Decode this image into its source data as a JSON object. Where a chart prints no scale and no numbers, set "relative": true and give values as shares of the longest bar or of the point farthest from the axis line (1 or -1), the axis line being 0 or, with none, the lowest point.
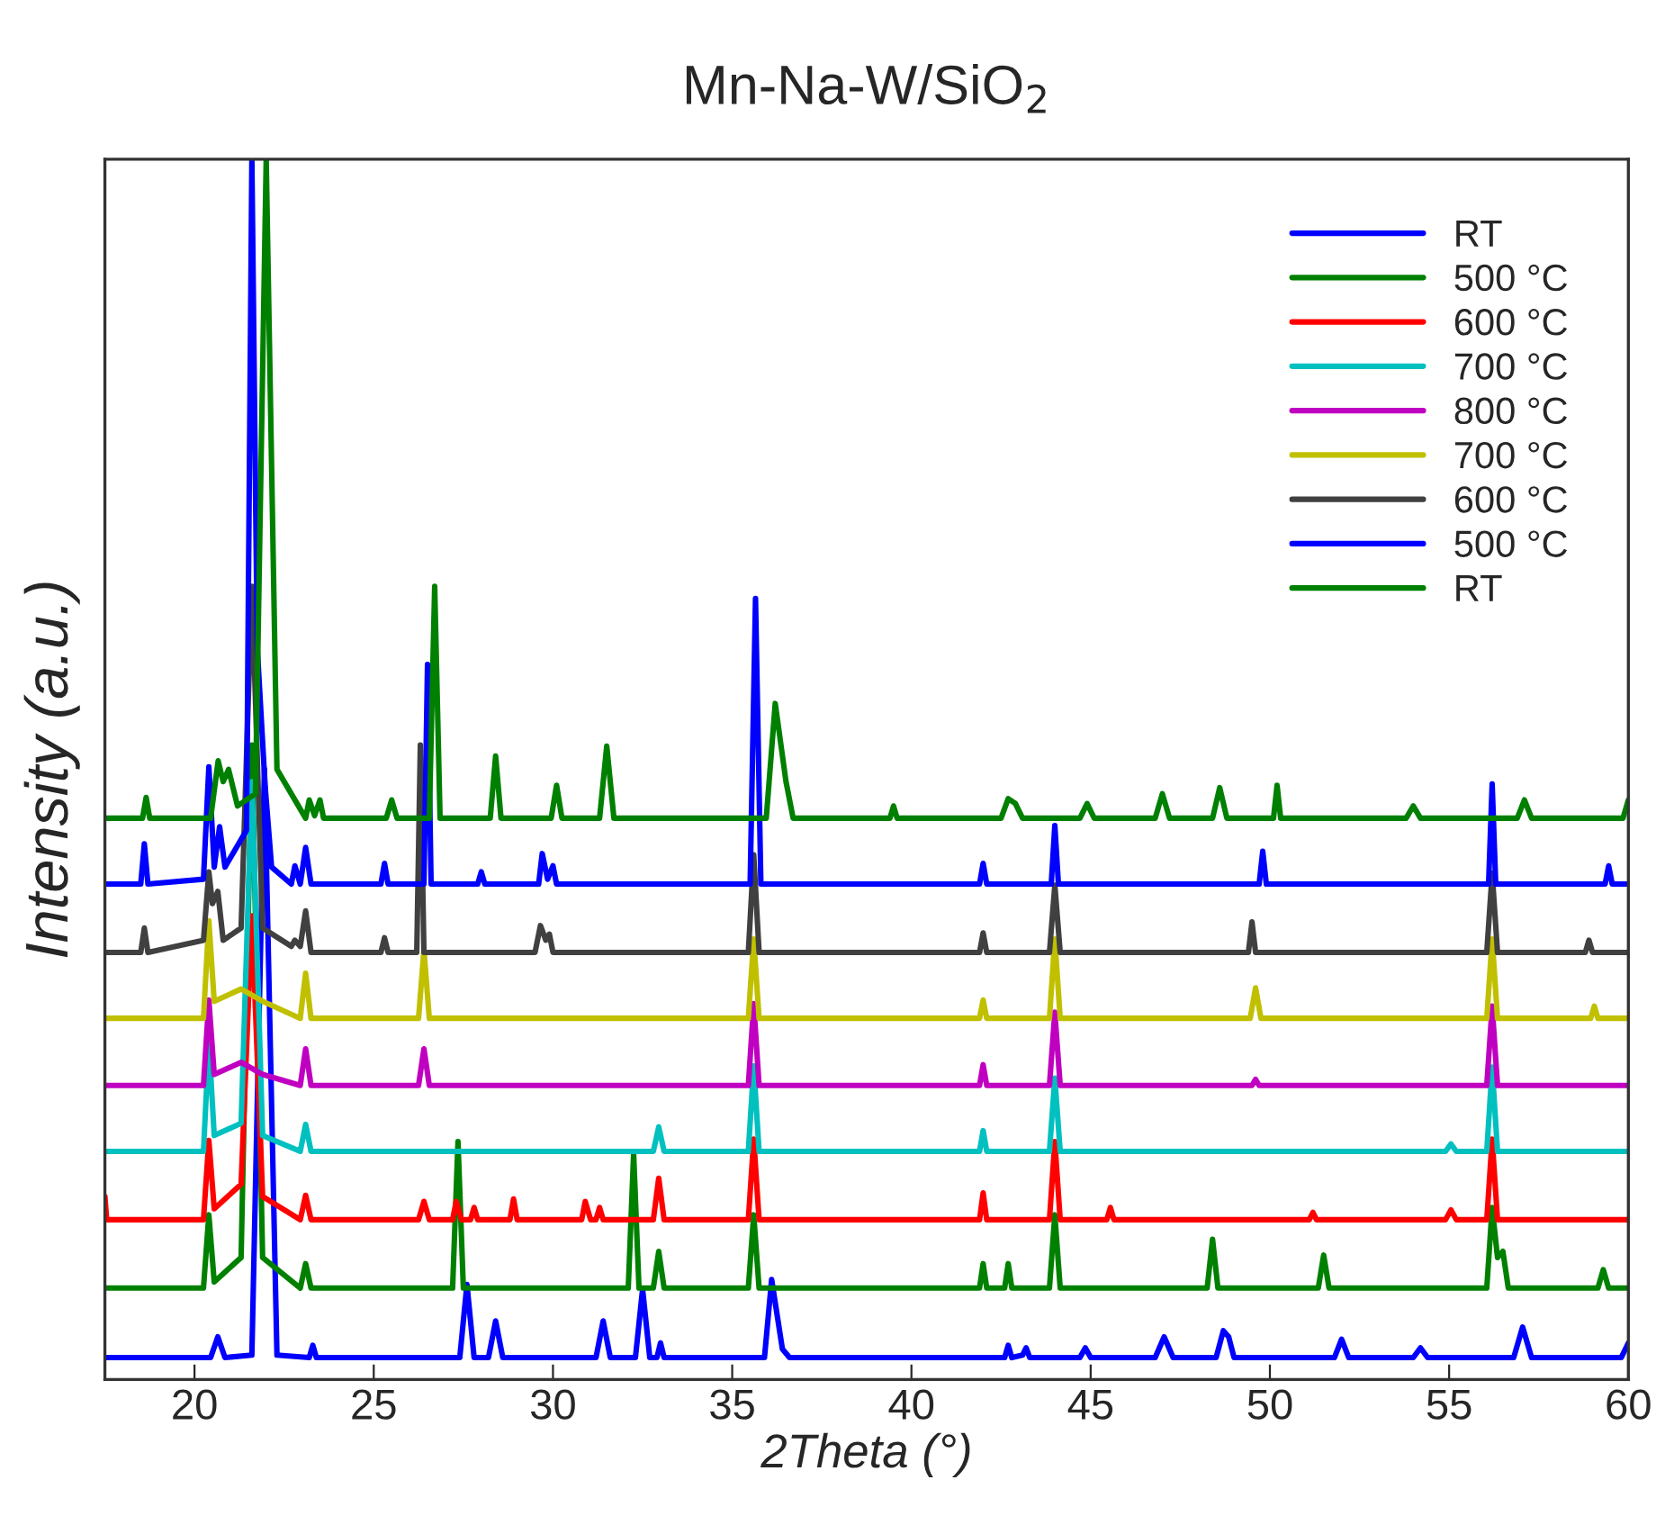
{
  "chart_data": {
    "type": "line",
    "title": "Mn-Na-W/SiO$_{2}$",
    "xlabel": "2Theta (°)",
    "ylabel": "Intensity (a.u.)",
    "xlim": [
      17.5,
      60
    ],
    "xticks": [
      20,
      25,
      30,
      35,
      40,
      45,
      50,
      55,
      60
    ],
    "relative": true,
    "tick_labels": "x",
    "legend": "top right",
    "series": [
      {
        "name": "RT",
        "color": "#0000ff",
        "x": [
          17.5,
          20.45,
          20.65,
          20.85,
          21.6,
          21.95,
          22.3,
          23.2,
          23.3,
          23.4,
          27.4,
          27.6,
          27.8,
          28.2,
          28.4,
          28.6,
          31.2,
          31.4,
          31.6,
          32.3,
          32.5,
          32.7,
          32.9,
          33.0,
          33.1,
          35.9,
          36.1,
          36.4,
          36.6,
          42.6,
          42.7,
          42.8,
          43.1,
          43.2,
          43.3,
          44.7,
          44.85,
          45.0,
          46.8,
          47.05,
          47.3,
          48.5,
          48.7,
          48.85,
          49.0,
          51.8,
          52.0,
          52.2,
          54.0,
          54.2,
          54.4,
          56.8,
          57.05,
          57.3,
          59.8,
          60
        ],
        "values": [
          0.018,
          0.018,
          0.035,
          0.018,
          0.02,
          0.5,
          0.02,
          0.018,
          0.028,
          0.018,
          0.018,
          0.078,
          0.018,
          0.018,
          0.048,
          0.018,
          0.018,
          0.048,
          0.018,
          0.018,
          0.074,
          0.018,
          0.018,
          0.03,
          0.018,
          0.018,
          0.082,
          0.025,
          0.018,
          0.018,
          0.028,
          0.018,
          0.02,
          0.026,
          0.018,
          0.018,
          0.026,
          0.018,
          0.018,
          0.035,
          0.018,
          0.018,
          0.04,
          0.035,
          0.018,
          0.018,
          0.033,
          0.018,
          0.018,
          0.026,
          0.018,
          0.018,
          0.043,
          0.018,
          0.018,
          0.03
        ]
      },
      {
        "name": "500 °C",
        "color": "#008000",
        "x": [
          17.5,
          20.25,
          20.4,
          20.55,
          21.3,
          21.6,
          21.9,
          22.95,
          23.1,
          23.25,
          27.2,
          27.35,
          27.5,
          32.1,
          32.25,
          32.4,
          32.8,
          32.95,
          33.1,
          35.45,
          35.6,
          35.75,
          41.9,
          42.0,
          42.1,
          42.6,
          42.7,
          42.8,
          43.85,
          44.0,
          44.15,
          48.25,
          48.4,
          48.55,
          51.35,
          51.5,
          51.65,
          56.05,
          56.2,
          56.35,
          56.5,
          56.65,
          59.15,
          59.3,
          59.45,
          60
        ],
        "values": [
          0.075,
          0.075,
          0.135,
          0.08,
          0.1,
          0.52,
          0.1,
          0.075,
          0.095,
          0.075,
          0.075,
          0.195,
          0.075,
          0.075,
          0.185,
          0.075,
          0.075,
          0.105,
          0.075,
          0.075,
          0.135,
          0.075,
          0.075,
          0.095,
          0.075,
          0.075,
          0.095,
          0.075,
          0.075,
          0.135,
          0.075,
          0.075,
          0.115,
          0.075,
          0.075,
          0.102,
          0.075,
          0.075,
          0.141,
          0.1,
          0.105,
          0.075,
          0.075,
          0.09,
          0.075,
          0.075
        ]
      },
      {
        "name": "600 °C",
        "color": "#ff0000",
        "x": [
          17.5,
          17.55,
          17.65,
          20.25,
          20.4,
          20.55,
          21.3,
          21.6,
          21.9,
          22.95,
          23.1,
          23.25,
          26.25,
          26.4,
          26.55,
          27.2,
          27.3,
          27.45,
          27.7,
          27.8,
          27.9,
          28.8,
          28.9,
          29.0,
          30.8,
          30.9,
          31.05,
          31.2,
          31.3,
          31.4,
          32.8,
          32.95,
          33.1,
          35.45,
          35.6,
          35.75,
          41.9,
          42.0,
          42.1,
          43.85,
          44.0,
          44.15,
          45.45,
          45.55,
          45.65,
          51.1,
          51.2,
          51.3,
          54.9,
          55.05,
          55.2,
          56.05,
          56.2,
          56.35,
          60
        ],
        "values": [
          0.15,
          0.131,
          0.131,
          0.131,
          0.196,
          0.14,
          0.16,
          0.38,
          0.15,
          0.131,
          0.151,
          0.131,
          0.131,
          0.146,
          0.131,
          0.131,
          0.146,
          0.131,
          0.131,
          0.141,
          0.131,
          0.131,
          0.148,
          0.131,
          0.131,
          0.146,
          0.131,
          0.131,
          0.141,
          0.131,
          0.131,
          0.165,
          0.131,
          0.131,
          0.197,
          0.131,
          0.131,
          0.153,
          0.131,
          0.131,
          0.195,
          0.131,
          0.131,
          0.141,
          0.131,
          0.131,
          0.137,
          0.131,
          0.131,
          0.139,
          0.131,
          0.131,
          0.197,
          0.131,
          0.131
        ]
      },
      {
        "name": "700 °C",
        "color": "#00c0c0",
        "x": [
          17.5,
          20.25,
          20.4,
          20.55,
          21.3,
          21.6,
          21.9,
          22.95,
          23.1,
          23.25,
          32.8,
          32.95,
          33.1,
          35.45,
          35.6,
          35.75,
          41.9,
          42.0,
          42.1,
          43.85,
          44.0,
          44.15,
          54.9,
          55.05,
          55.2,
          56.05,
          56.2,
          56.35,
          60
        ],
        "values": [
          0.187,
          0.187,
          0.277,
          0.2,
          0.21,
          0.49,
          0.2,
          0.187,
          0.209,
          0.187,
          0.187,
          0.207,
          0.187,
          0.187,
          0.257,
          0.187,
          0.187,
          0.204,
          0.187,
          0.187,
          0.247,
          0.187,
          0.187,
          0.193,
          0.187,
          0.187,
          0.256,
          0.187,
          0.187
        ]
      },
      {
        "name": "800 °C",
        "color": "#c000c0",
        "x": [
          17.5,
          20.25,
          20.4,
          20.55,
          21.3,
          21.6,
          21.9,
          22.95,
          23.1,
          23.25,
          26.25,
          26.4,
          26.55,
          35.45,
          35.6,
          35.75,
          41.9,
          42.0,
          42.1,
          43.85,
          44.0,
          44.15,
          49.5,
          49.6,
          49.7,
          56.05,
          56.2,
          56.35,
          60
        ],
        "values": [
          0.241,
          0.241,
          0.311,
          0.25,
          0.26,
          null,
          0.25,
          0.241,
          0.271,
          0.241,
          0.241,
          0.271,
          0.241,
          0.241,
          0.308,
          0.241,
          0.241,
          0.258,
          0.241,
          0.241,
          0.301,
          0.241,
          0.241,
          0.246,
          0.241,
          0.241,
          0.306,
          0.241,
          0.241
        ]
      },
      {
        "name": "700 °C",
        "color": "#c0c000",
        "x": [
          17.5,
          20.25,
          20.4,
          20.55,
          21.3,
          21.6,
          21.9,
          22.95,
          23.1,
          23.25,
          26.25,
          26.4,
          26.55,
          35.45,
          35.6,
          35.75,
          41.9,
          42.0,
          42.1,
          43.85,
          44.0,
          44.15,
          49.45,
          49.6,
          49.75,
          56.05,
          56.2,
          56.35,
          58.95,
          59.05,
          59.15,
          60
        ],
        "values": [
          0.296,
          0.296,
          0.376,
          0.31,
          0.32,
          null,
          0.31,
          0.296,
          0.333,
          0.296,
          0.296,
          0.352,
          0.296,
          0.296,
          0.361,
          0.296,
          0.296,
          0.311,
          0.296,
          0.296,
          0.361,
          0.296,
          0.296,
          0.321,
          0.296,
          0.296,
          0.361,
          0.296,
          0.296,
          0.306,
          0.296,
          0.296
        ]
      },
      {
        "name": "600 °C",
        "color": "#404040",
        "x": [
          17.5,
          18.5,
          18.6,
          18.7,
          20.25,
          20.4,
          20.5,
          20.65,
          20.8,
          21.3,
          21.6,
          21.9,
          22.7,
          22.8,
          22.95,
          23.1,
          23.25,
          25.2,
          25.3,
          25.4,
          26.2,
          26.3,
          26.4,
          29.5,
          29.65,
          29.8,
          29.9,
          30.0,
          35.45,
          35.6,
          35.75,
          41.9,
          42.0,
          42.1,
          43.85,
          44.0,
          44.15,
          49.4,
          49.5,
          49.6,
          56.05,
          56.2,
          56.35,
          58.8,
          58.9,
          59.0,
          60
        ],
        "values": [
          0.35,
          0.35,
          0.37,
          0.35,
          0.36,
          0.416,
          0.39,
          0.4,
          0.36,
          0.37,
          0.65,
          0.37,
          0.355,
          0.36,
          0.355,
          0.384,
          0.35,
          0.35,
          0.362,
          0.35,
          0.35,
          0.52,
          0.35,
          0.35,
          0.372,
          0.36,
          0.365,
          0.35,
          0.35,
          0.43,
          0.35,
          0.35,
          0.366,
          0.35,
          0.35,
          0.405,
          0.35,
          0.35,
          0.375,
          0.35,
          0.35,
          0.415,
          0.35,
          0.35,
          0.36,
          0.35,
          0.35
        ]
      },
      {
        "name": "500 °C",
        "color": "#0000ff",
        "x": [
          17.5,
          18.5,
          18.6,
          18.7,
          20.25,
          20.4,
          20.55,
          20.7,
          20.85,
          21.45,
          21.6,
          21.75,
          21.97,
          22.15,
          22.7,
          22.8,
          22.95,
          23.1,
          23.25,
          25.2,
          25.3,
          25.4,
          26.4,
          26.5,
          26.6,
          27.9,
          28.0,
          28.1,
          29.6,
          29.7,
          29.85,
          30.0,
          30.1,
          35.5,
          35.65,
          35.8,
          41.9,
          42.0,
          42.1,
          43.9,
          44.0,
          44.1,
          49.7,
          49.8,
          49.9,
          56.1,
          56.2,
          56.3,
          59.35,
          59.45,
          59.55,
          60
        ],
        "values": [
          0.406,
          0.406,
          0.439,
          0.406,
          0.41,
          0.502,
          0.42,
          0.453,
          0.42,
          0.45,
          1.0,
          0.6,
          0.486,
          0.42,
          0.406,
          0.421,
          0.406,
          0.436,
          0.406,
          0.406,
          0.423,
          0.406,
          0.406,
          0.586,
          0.406,
          0.406,
          0.416,
          0.406,
          0.406,
          0.431,
          0.41,
          0.421,
          0.406,
          0.406,
          0.64,
          0.406,
          0.406,
          0.423,
          0.406,
          0.406,
          0.454,
          0.406,
          0.406,
          0.433,
          0.406,
          0.406,
          0.488,
          0.406,
          0.406,
          0.421,
          0.406,
          0.406
        ]
      },
      {
        "name": "RT",
        "color": "#008000",
        "x": [
          17.5,
          18.55,
          18.65,
          18.75,
          20.45,
          20.66,
          20.8,
          20.95,
          21.2,
          21.7,
          22.0,
          22.3,
          23.1,
          23.2,
          23.35,
          23.5,
          23.6,
          25.35,
          25.5,
          25.65,
          26.55,
          26.7,
          26.85,
          28.25,
          28.4,
          28.55,
          29.95,
          30.1,
          30.25,
          31.3,
          31.5,
          31.7,
          35.95,
          36.2,
          36.5,
          36.7,
          39.4,
          39.5,
          39.6,
          42.5,
          42.7,
          42.9,
          43.1,
          44.7,
          44.9,
          45.1,
          46.8,
          47.0,
          47.2,
          48.4,
          48.6,
          48.8,
          50.1,
          50.2,
          50.3,
          53.8,
          54.0,
          54.2,
          56.9,
          57.1,
          57.3,
          59.85,
          60
        ],
        "values": [
          0.46,
          0.46,
          0.477,
          0.46,
          0.46,
          0.507,
          0.49,
          0.5,
          0.47,
          0.48,
          1.0,
          0.5,
          0.46,
          0.475,
          0.462,
          0.475,
          0.46,
          0.46,
          0.475,
          0.46,
          0.46,
          0.65,
          0.46,
          0.46,
          0.511,
          0.46,
          0.46,
          0.487,
          0.46,
          0.46,
          0.519,
          0.46,
          0.46,
          0.554,
          0.49,
          0.46,
          0.46,
          0.47,
          0.46,
          0.46,
          0.476,
          0.472,
          0.46,
          0.46,
          0.472,
          0.46,
          0.46,
          0.48,
          0.46,
          0.46,
          0.485,
          0.46,
          0.46,
          0.487,
          0.46,
          0.46,
          0.47,
          0.46,
          0.46,
          0.475,
          0.46,
          0.46,
          0.475
        ]
      }
    ]
  }
}
